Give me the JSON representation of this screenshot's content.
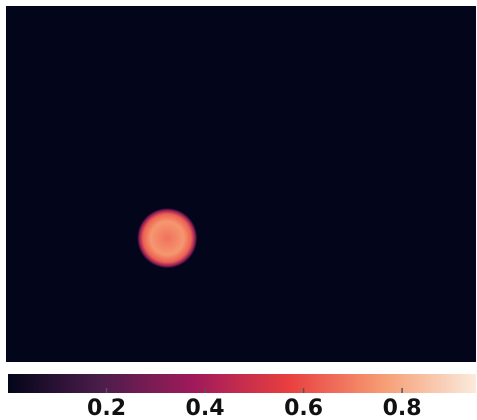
{
  "chart_data": {
    "type": "heatmap",
    "colormap": "rocket",
    "background_value": 0,
    "spot": {
      "x": 0.343,
      "y": 0.652,
      "radius": 0.064,
      "value": 0.75
    },
    "clim": [
      0,
      0.95
    ],
    "cticks": [
      0.2,
      0.4,
      0.6,
      0.8
    ]
  }
}
